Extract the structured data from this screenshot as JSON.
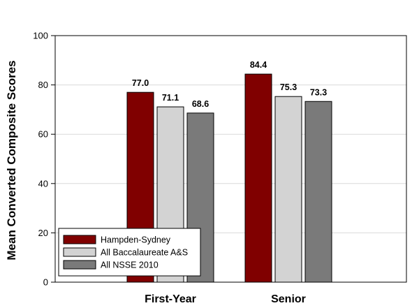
{
  "chart_data": {
    "type": "bar",
    "title": "",
    "xlabel": "",
    "ylabel": "Mean Converted Composite Scores",
    "ylim": [
      0,
      100
    ],
    "yticks": [
      0,
      20,
      40,
      60,
      80,
      100
    ],
    "grid": true,
    "legend_position": "bottom-left",
    "categories": [
      "First-Year",
      "Senior"
    ],
    "series": [
      {
        "name": "Hampden-Sydney",
        "color": "#800000",
        "values": [
          77.0,
          84.4
        ],
        "labels": [
          "77.0",
          "84.4"
        ]
      },
      {
        "name": "All Baccalaureate A&S",
        "color": "#d3d3d3",
        "values": [
          71.1,
          75.3
        ],
        "labels": [
          "71.1",
          "75.3"
        ]
      },
      {
        "name": "All NSSE 2010",
        "color": "#7a7a7a",
        "values": [
          68.6,
          73.3
        ],
        "labels": [
          "68.6",
          "73.3"
        ]
      }
    ]
  }
}
